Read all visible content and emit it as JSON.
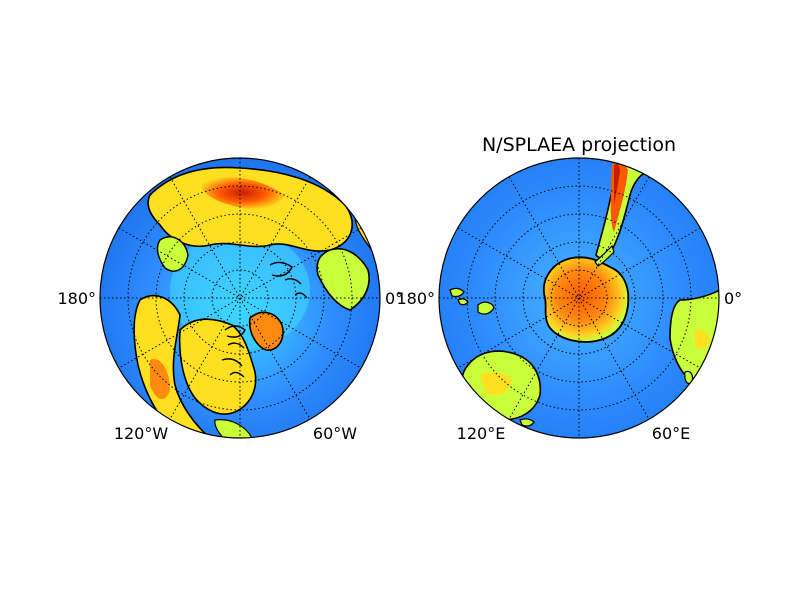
{
  "figure": {
    "title": "N/SPLAEA projection"
  },
  "maps": [
    {
      "name": "north-polar-map",
      "hemisphere": "north",
      "projection": "npaeqd",
      "meridian_labels": {
        "left": "180°",
        "right": "0°",
        "bottom_left": "120°W",
        "bottom_right": "60°W"
      }
    },
    {
      "name": "south-polar-map",
      "hemisphere": "south",
      "projection": "splaea",
      "meridian_labels": {
        "left": "180°",
        "right": "0°",
        "bottom_left": "120°E",
        "bottom_right": "60°E"
      }
    }
  ],
  "colors": {
    "ocean_deep": "#1a6ee8",
    "ocean": "#2f8cff",
    "ocean_shallow": "#3fd6ff",
    "land_low": "#c8ff3a",
    "land_mid": "#ffe020",
    "land_high": "#ff7a10",
    "land_peak": "#c81e00",
    "coastline": "#000000",
    "graticule": "#000000"
  }
}
